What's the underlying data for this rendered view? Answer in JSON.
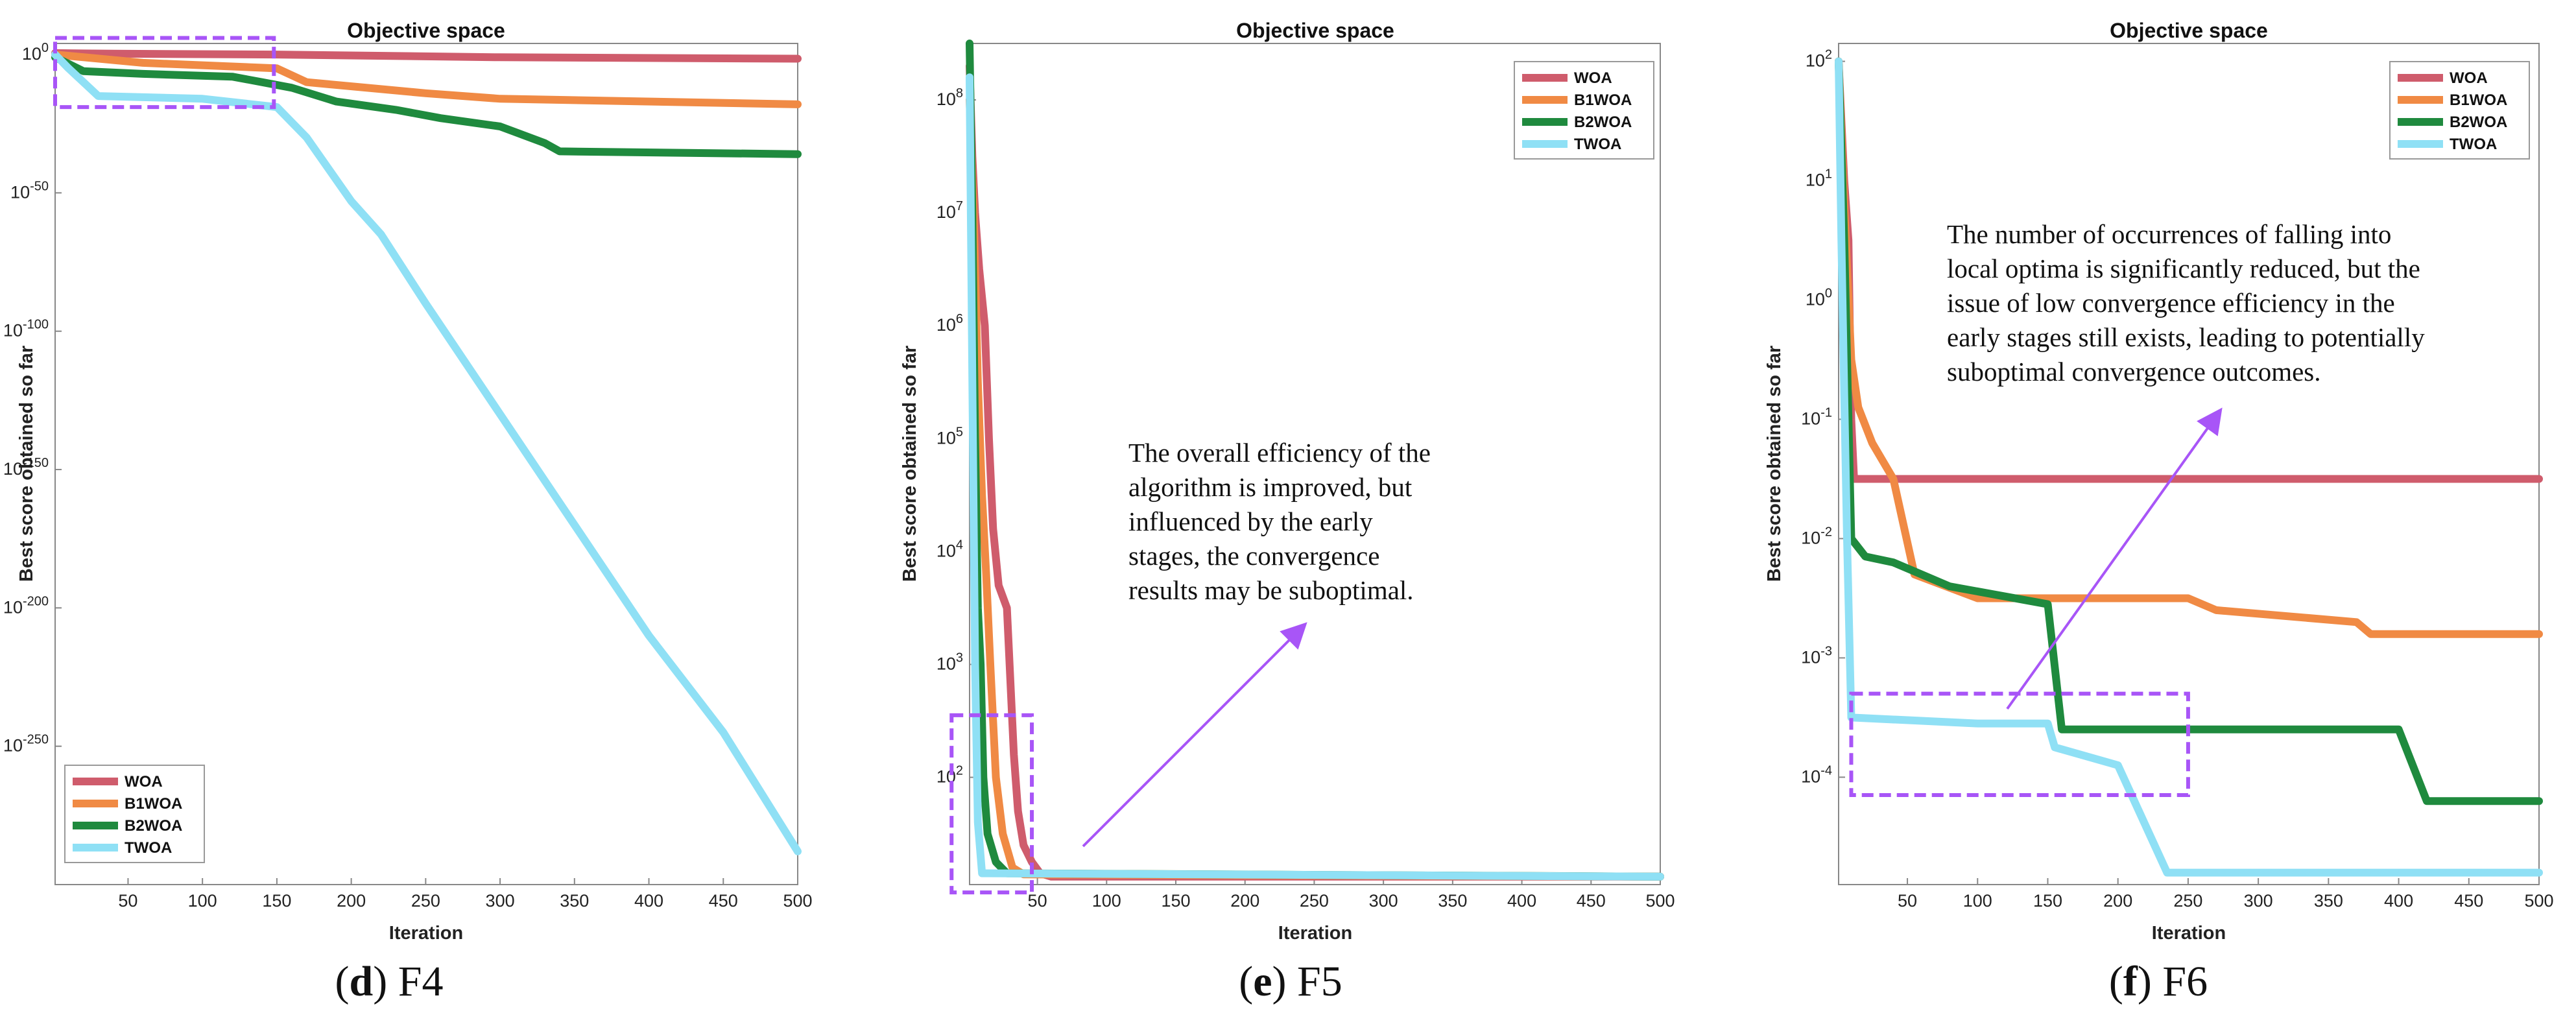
{
  "colors": {
    "WOA": "#cf5c6c",
    "B1WOA": "#f08a44",
    "B2WOA": "#1f8a3e",
    "TWOA": "#8fe0f5",
    "highlight": "#a855f7"
  },
  "chart_data": [
    {
      "type": "line",
      "caption_letter": "d",
      "caption_rest": " F4",
      "title": "Objective space",
      "xlabel": "Iteration",
      "ylabel": "Best score obtained so far",
      "xlim": [
        1,
        500
      ],
      "xticks": [
        50,
        100,
        150,
        200,
        250,
        300,
        350,
        400,
        450,
        500
      ],
      "ylim_log10": [
        -300,
        4
      ],
      "yticks": [
        {
          "exp": 0,
          "label": "10^0"
        },
        {
          "exp": -50,
          "label": "10^-50"
        },
        {
          "exp": -100,
          "label": "10^-100"
        },
        {
          "exp": -150,
          "label": "10^-150"
        },
        {
          "exp": -200,
          "label": "10^-200"
        },
        {
          "exp": -250,
          "label": "10^-250"
        }
      ],
      "legend_location": "bottom-left",
      "highlight_box": {
        "x": [
          1,
          148
        ],
        "log10": [
          6,
          -19
        ]
      },
      "series": [
        {
          "name": "WOA",
          "log10_points": [
            [
              1,
              0.5
            ],
            [
              40,
              0.3
            ],
            [
              150,
              0
            ],
            [
              300,
              -1
            ],
            [
              500,
              -1.5
            ]
          ]
        },
        {
          "name": "B1WOA",
          "log10_points": [
            [
              1,
              0
            ],
            [
              60,
              -3
            ],
            [
              150,
              -5
            ],
            [
              170,
              -10
            ],
            [
              250,
              -14
            ],
            [
              300,
              -16
            ],
            [
              500,
              -18
            ]
          ]
        },
        {
          "name": "B2WOA",
          "log10_points": [
            [
              1,
              -1
            ],
            [
              20,
              -6
            ],
            [
              60,
              -7
            ],
            [
              120,
              -8
            ],
            [
              140,
              -10
            ],
            [
              160,
              -12
            ],
            [
              190,
              -17
            ],
            [
              230,
              -20
            ],
            [
              260,
              -23
            ],
            [
              300,
              -26
            ],
            [
              310,
              -28
            ],
            [
              330,
              -32
            ],
            [
              340,
              -35
            ],
            [
              500,
              -36
            ]
          ]
        },
        {
          "name": "TWOA",
          "log10_points": [
            [
              1,
              0
            ],
            [
              10,
              -5
            ],
            [
              20,
              -10
            ],
            [
              30,
              -15
            ],
            [
              100,
              -16
            ],
            [
              150,
              -19
            ],
            [
              170,
              -30
            ],
            [
              200,
              -53
            ],
            [
              220,
              -65
            ],
            [
              250,
              -90
            ],
            [
              300,
              -130
            ],
            [
              350,
              -170
            ],
            [
              400,
              -210
            ],
            [
              450,
              -245
            ],
            [
              500,
              -288
            ]
          ]
        }
      ]
    },
    {
      "type": "line",
      "caption_letter": "e",
      "caption_rest": " F5",
      "title": "Objective space",
      "xlabel": "Iteration",
      "ylabel": "Best score obtained so far",
      "xlim": [
        1,
        500
      ],
      "xticks": [
        50,
        100,
        150,
        200,
        250,
        300,
        350,
        400,
        450,
        500
      ],
      "ylim_log10": [
        1.05,
        8.5
      ],
      "yticks": [
        {
          "exp": 2,
          "label": "10^2"
        },
        {
          "exp": 3,
          "label": "10^3"
        },
        {
          "exp": 4,
          "label": "10^4"
        },
        {
          "exp": 5,
          "label": "10^5"
        },
        {
          "exp": 6,
          "label": "10^6"
        },
        {
          "exp": 7,
          "label": "10^7"
        },
        {
          "exp": 8,
          "label": "10^8"
        }
      ],
      "legend_location": "top-right",
      "highlight_box": {
        "x": [
          -12,
          46
        ],
        "log10": [
          2.55,
          0.98
        ]
      },
      "annotation": [
        "The overall efficiency of the",
        "algorithm is improved, but",
        "influenced by the early",
        "stages, the convergence",
        "results may be suboptimal."
      ],
      "series": [
        {
          "name": "WOA",
          "log10_points": [
            [
              1,
              8.3
            ],
            [
              3,
              7.5
            ],
            [
              5,
              7.0
            ],
            [
              8,
              6.5
            ],
            [
              12,
              6.0
            ],
            [
              15,
              5.0
            ],
            [
              18,
              4.2
            ],
            [
              22,
              3.7
            ],
            [
              28,
              3.5
            ],
            [
              33,
              2.2
            ],
            [
              36,
              1.7
            ],
            [
              40,
              1.4
            ],
            [
              46,
              1.25
            ],
            [
              52,
              1.15
            ],
            [
              60,
              1.12
            ],
            [
              500,
              1.12
            ]
          ]
        },
        {
          "name": "B1WOA",
          "log10_points": [
            [
              1,
              8.0
            ],
            [
              4,
              7.0
            ],
            [
              7,
              5.5
            ],
            [
              10,
              4.5
            ],
            [
              13,
              3.8
            ],
            [
              16,
              3.0
            ],
            [
              20,
              2.0
            ],
            [
              25,
              1.5
            ],
            [
              32,
              1.2
            ],
            [
              40,
              1.14
            ],
            [
              500,
              1.12
            ]
          ]
        },
        {
          "name": "B2WOA",
          "log10_points": [
            [
              1,
              8.5
            ],
            [
              3,
              7.0
            ],
            [
              5,
              5.0
            ],
            [
              7,
              3.5
            ],
            [
              9,
              3.0
            ],
            [
              11,
              2.0
            ],
            [
              14,
              1.5
            ],
            [
              20,
              1.25
            ],
            [
              28,
              1.15
            ],
            [
              500,
              1.12
            ]
          ]
        },
        {
          "name": "TWOA",
          "log10_points": [
            [
              1,
              8.2
            ],
            [
              3,
              5.5
            ],
            [
              5,
              3.0
            ],
            [
              7,
              1.6
            ],
            [
              10,
              1.15
            ],
            [
              500,
              1.12
            ]
          ]
        }
      ]
    },
    {
      "type": "line",
      "caption_letter": "f",
      "caption_rest": " F6",
      "title": "Objective space",
      "xlabel": "Iteration",
      "ylabel": "Best score obtained so far",
      "xlim": [
        1,
        500
      ],
      "xticks": [
        50,
        100,
        150,
        200,
        250,
        300,
        350,
        400,
        450,
        500
      ],
      "ylim_log10": [
        -4.9,
        2.15
      ],
      "yticks": [
        {
          "exp": 2,
          "label": "10^2"
        },
        {
          "exp": 1,
          "label": "10^1"
        },
        {
          "exp": 0,
          "label": "10^0"
        },
        {
          "exp": -1,
          "label": "10^-1"
        },
        {
          "exp": -2,
          "label": "10^-2"
        },
        {
          "exp": -3,
          "label": "10^-3"
        },
        {
          "exp": -4,
          "label": "10^-4"
        }
      ],
      "legend_location": "top-right",
      "highlight_box": {
        "x": [
          10,
          250
        ],
        "log10": [
          -3.3,
          -4.15
        ]
      },
      "annotation": [
        "The number of occurrences of falling into",
        "local optima is significantly reduced, but the",
        "issue of low convergence efficiency in the",
        "early stages still exists, leading to potentially",
        "suboptimal convergence outcomes."
      ],
      "series": [
        {
          "name": "WOA",
          "log10_points": [
            [
              1,
              2.0
            ],
            [
              5,
              1.0
            ],
            [
              8,
              0.5
            ],
            [
              10,
              -1.0
            ],
            [
              12,
              -1.5
            ],
            [
              500,
              -1.5
            ]
          ]
        },
        {
          "name": "B1WOA",
          "log10_points": [
            [
              1,
              2.0
            ],
            [
              5,
              0.8
            ],
            [
              10,
              -0.5
            ],
            [
              15,
              -0.9
            ],
            [
              25,
              -1.2
            ],
            [
              40,
              -1.5
            ],
            [
              55,
              -2.3
            ],
            [
              100,
              -2.5
            ],
            [
              250,
              -2.5
            ],
            [
              270,
              -2.6
            ],
            [
              370,
              -2.7
            ],
            [
              380,
              -2.8
            ],
            [
              500,
              -2.8
            ]
          ]
        },
        {
          "name": "B2WOA",
          "log10_points": [
            [
              1,
              2.0
            ],
            [
              5,
              0.5
            ],
            [
              8,
              -1.0
            ],
            [
              10,
              -2.0
            ],
            [
              20,
              -2.15
            ],
            [
              40,
              -2.2
            ],
            [
              60,
              -2.3
            ],
            [
              80,
              -2.4
            ],
            [
              150,
              -2.55
            ],
            [
              160,
              -3.6
            ],
            [
              400,
              -3.6
            ],
            [
              420,
              -4.2
            ],
            [
              500,
              -4.2
            ]
          ]
        },
        {
          "name": "TWOA",
          "log10_points": [
            [
              1,
              2.0
            ],
            [
              3,
              0.5
            ],
            [
              5,
              -0.8
            ],
            [
              7,
              -2.0
            ],
            [
              10,
              -3.5
            ],
            [
              100,
              -3.55
            ],
            [
              150,
              -3.55
            ],
            [
              155,
              -3.75
            ],
            [
              200,
              -3.9
            ],
            [
              235,
              -4.8
            ],
            [
              500,
              -4.8
            ]
          ]
        }
      ]
    }
  ]
}
